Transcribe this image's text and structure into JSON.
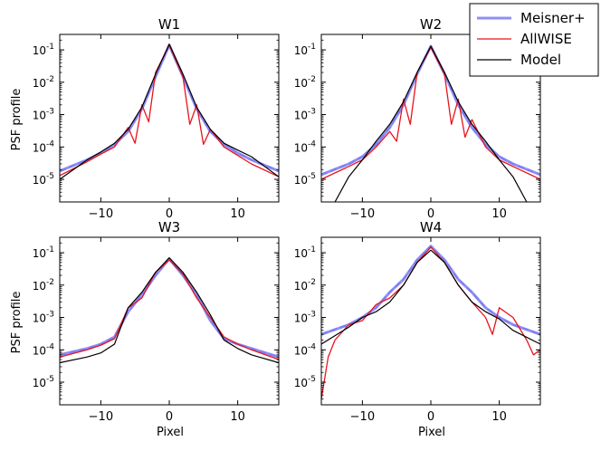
{
  "chart_data": {
    "type": "line",
    "ylabel": "PSF profile",
    "xlabel": "Pixel",
    "xlim": [
      -16,
      16
    ],
    "ylim": [
      2e-06,
      0.3
    ],
    "yscale": "log",
    "x_ticks": [
      -10,
      0,
      10
    ],
    "x_tick_labels": [
      "−10",
      "0",
      "10"
    ],
    "y_tick_labels": [
      {
        "base": "10",
        "exp": "-1",
        "value": 0.1
      },
      {
        "base": "10",
        "exp": "-2",
        "value": 0.01
      },
      {
        "base": "10",
        "exp": "-3",
        "value": 0.001
      },
      {
        "base": "10",
        "exp": "-4",
        "value": 0.0001
      },
      {
        "base": "10",
        "exp": "-5",
        "value": 1e-05
      }
    ],
    "legend": {
      "placement": "top-right",
      "entries": [
        {
          "label": "Meisner+",
          "color": "#7b7bf5"
        },
        {
          "label": "AllWISE",
          "color": "#e8141e"
        },
        {
          "label": "Model",
          "color": "#000000"
        }
      ]
    },
    "panels": [
      {
        "title": "W1",
        "series": [
          {
            "name": "Meisner+",
            "x": [
              -16,
              -12,
              -10,
              -8,
              -6,
              -4,
              -2,
              0,
              2,
              4,
              6,
              8,
              10,
              12,
              16
            ],
            "y": [
              1.8e-05,
              4e-05,
              6.5e-05,
              0.00012,
              0.0003,
              0.0015,
              0.015,
              0.14,
              0.015,
              0.0015,
              0.0003,
              0.00012,
              6.5e-05,
              4e-05,
              1.8e-05
            ]
          },
          {
            "name": "AllWISE",
            "x": [
              -16,
              -12,
              -10,
              -8,
              -6,
              -5,
              -4,
              -3,
              -2,
              0,
              2,
              3,
              4,
              5,
              6,
              8,
              10,
              12,
              16
            ],
            "y": [
              1.3e-05,
              3.5e-05,
              6e-05,
              0.0001,
              0.0004,
              0.00013,
              0.002,
              0.0006,
              0.02,
              0.14,
              0.015,
              0.0005,
              0.002,
              0.00012,
              0.00035,
              0.0001,
              5.5e-05,
              3e-05,
              1.2e-05
            ]
          },
          {
            "name": "Model",
            "x": [
              -16,
              -12,
              -10,
              -8,
              -6,
              -4,
              -2,
              0,
              2,
              4,
              6,
              8,
              10,
              12,
              16
            ],
            "y": [
              1e-05,
              4e-05,
              7e-05,
              0.00013,
              0.00035,
              0.0017,
              0.018,
              0.15,
              0.018,
              0.0017,
              0.00035,
              0.00013,
              8e-05,
              5e-05,
              1.2e-05
            ]
          }
        ]
      },
      {
        "title": "W2",
        "series": [
          {
            "name": "Meisner+",
            "x": [
              -16,
              -12,
              -10,
              -8,
              -6,
              -4,
              -2,
              0,
              2,
              4,
              6,
              8,
              10,
              12,
              16
            ],
            "y": [
              1.4e-05,
              3e-05,
              5e-05,
              0.00012,
              0.0004,
              0.002,
              0.018,
              0.13,
              0.018,
              0.002,
              0.0004,
              0.00012,
              5e-05,
              3e-05,
              1.4e-05
            ]
          },
          {
            "name": "AllWISE",
            "x": [
              -16,
              -12,
              -10,
              -8,
              -6,
              -5,
              -4,
              -3,
              -2,
              0,
              2,
              3,
              4,
              5,
              6,
              8,
              10,
              12,
              16
            ],
            "y": [
              1e-05,
              2.5e-05,
              4e-05,
              0.0001,
              0.0003,
              0.00015,
              0.003,
              0.0005,
              0.02,
              0.12,
              0.018,
              0.0005,
              0.003,
              0.0002,
              0.0007,
              0.0001,
              4e-05,
              2.5e-05,
              1e-05
            ]
          },
          {
            "name": "Model",
            "x": [
              -14,
              -12,
              -10,
              -8,
              -6,
              -4,
              -2,
              0,
              2,
              4,
              6,
              8,
              10,
              12,
              14
            ],
            "y": [
              2e-06,
              1.2e-05,
              4e-05,
              0.00015,
              0.0005,
              0.0025,
              0.02,
              0.13,
              0.02,
              0.0025,
              0.0005,
              0.00015,
              4e-05,
              1.2e-05,
              2e-06
            ]
          }
        ]
      },
      {
        "title": "W3",
        "series": [
          {
            "name": "Meisner+",
            "x": [
              -16,
              -12,
              -10,
              -8,
              -6,
              -4,
              -2,
              0,
              2,
              4,
              6,
              8,
              10,
              12,
              16
            ],
            "y": [
              7e-05,
              0.00011,
              0.00015,
              0.00025,
              0.0015,
              0.005,
              0.02,
              0.065,
              0.02,
              0.005,
              0.0008,
              0.00022,
              0.00015,
              0.00011,
              6e-05
            ]
          },
          {
            "name": "AllWISE",
            "x": [
              -16,
              -12,
              -10,
              -8,
              -6,
              -4,
              -2,
              0,
              2,
              4,
              6,
              8,
              10,
              12,
              16
            ],
            "y": [
              6e-05,
              0.0001,
              0.00014,
              0.00022,
              0.002,
              0.004,
              0.025,
              0.06,
              0.022,
              0.004,
              0.001,
              0.00025,
              0.00015,
              0.0001,
              5e-05
            ]
          },
          {
            "name": "Model",
            "x": [
              -16,
              -12,
              -10,
              -8,
              -6,
              -4,
              -2,
              0,
              2,
              4,
              6,
              8,
              10,
              12,
              16
            ],
            "y": [
              4e-05,
              6e-05,
              8e-05,
              0.00015,
              0.002,
              0.006,
              0.025,
              0.07,
              0.025,
              0.006,
              0.0012,
              0.0002,
              0.00011,
              7e-05,
              4e-05
            ]
          }
        ]
      },
      {
        "title": "W4",
        "series": [
          {
            "name": "Meisner+",
            "x": [
              -16,
              -12,
              -10,
              -8,
              -6,
              -4,
              -2,
              0,
              2,
              4,
              6,
              8,
              10,
              12,
              16
            ],
            "y": [
              0.0003,
              0.0006,
              0.001,
              0.002,
              0.006,
              0.015,
              0.06,
              0.16,
              0.06,
              0.015,
              0.006,
              0.002,
              0.001,
              0.0006,
              0.0003
            ]
          },
          {
            "name": "AllWISE",
            "x": [
              -16,
              -15,
              -14,
              -12,
              -10,
              -8,
              -6,
              -4,
              -2,
              0,
              2,
              4,
              6,
              8,
              9,
              10,
              12,
              14,
              15,
              16
            ],
            "y": [
              3e-06,
              6e-05,
              0.0002,
              0.0006,
              0.0008,
              0.0025,
              0.004,
              0.01,
              0.05,
              0.15,
              0.05,
              0.01,
              0.003,
              0.001,
              0.0003,
              0.002,
              0.001,
              0.0002,
              7e-05,
              0.0001
            ]
          },
          {
            "name": "Model",
            "x": [
              -16,
              -12,
              -10,
              -8,
              -6,
              -4,
              -2,
              0,
              2,
              4,
              6,
              8,
              10,
              12,
              16
            ],
            "y": [
              0.00015,
              0.0005,
              0.001,
              0.0015,
              0.003,
              0.01,
              0.05,
              0.12,
              0.05,
              0.01,
              0.003,
              0.0015,
              0.0009,
              0.0004,
              0.00015
            ]
          }
        ]
      }
    ]
  }
}
